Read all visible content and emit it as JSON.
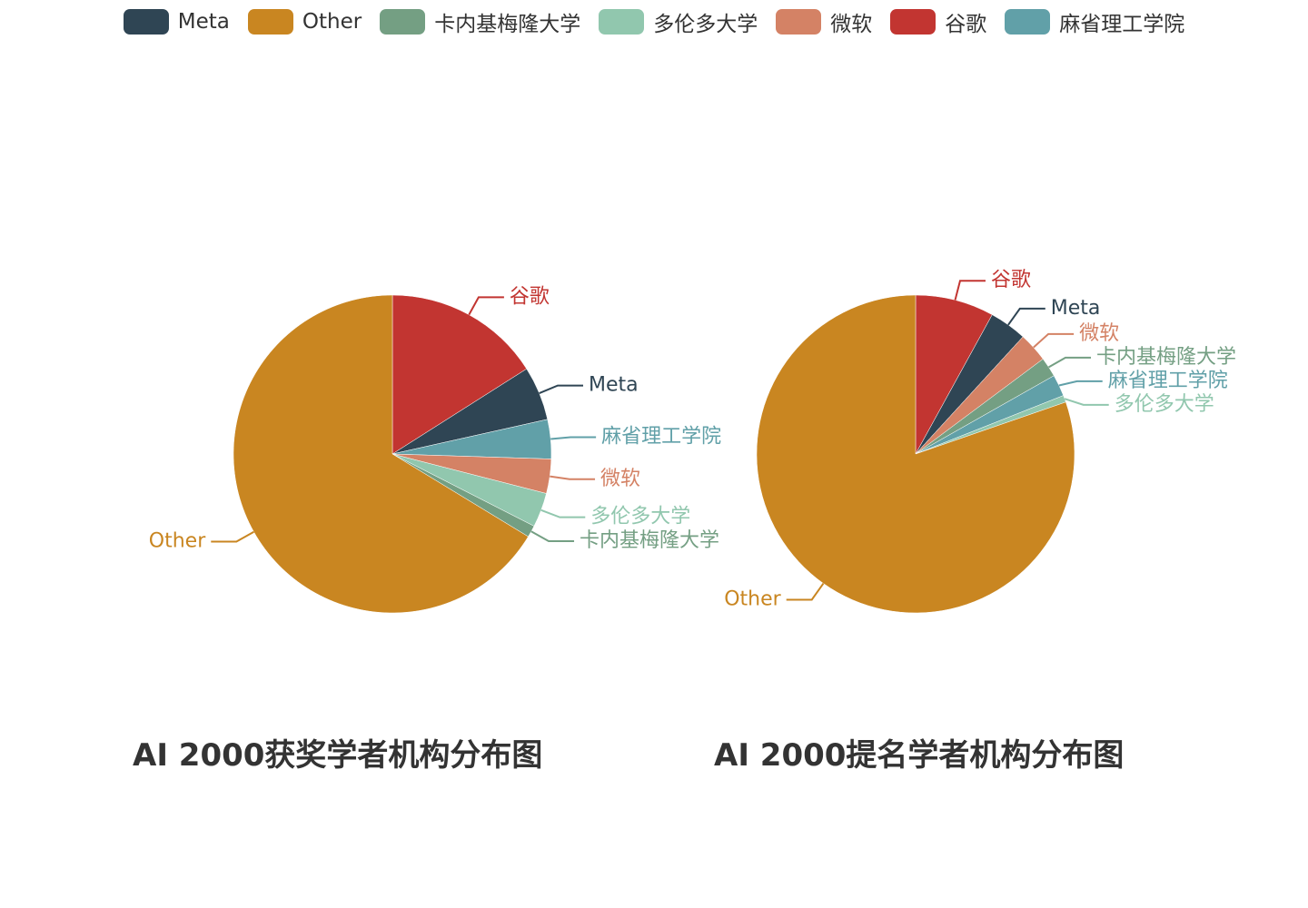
{
  "legend": {
    "items": [
      {
        "name": "Meta",
        "color": "#2f4554"
      },
      {
        "name": "Other",
        "color": "#c98621"
      },
      {
        "name": "卡内基梅隆大学",
        "color": "#749f83"
      },
      {
        "name": "多伦多大学",
        "color": "#91c7ae"
      },
      {
        "name": "微软",
        "color": "#d48265"
      },
      {
        "name": "谷歌",
        "color": "#c23531"
      },
      {
        "name": "麻省理工学院",
        "color": "#61a0a8"
      }
    ]
  },
  "chart_data": [
    {
      "type": "pie",
      "title": "AI 2000获奖学者机构分布图",
      "unit": "%",
      "slices": [
        {
          "name": "谷歌",
          "value": 16.0,
          "color": "#c23531"
        },
        {
          "name": "Meta",
          "value": 5.5,
          "color": "#2f4554"
        },
        {
          "name": "麻省理工学院",
          "value": 4.0,
          "color": "#61a0a8"
        },
        {
          "name": "微软",
          "value": 3.5,
          "color": "#d48265"
        },
        {
          "name": "多伦多大学",
          "value": 3.5,
          "color": "#91c7ae"
        },
        {
          "name": "卡内基梅隆大学",
          "value": 1.2,
          "color": "#749f83"
        },
        {
          "name": "Other",
          "value": 66.3,
          "color": "#c98621"
        }
      ]
    },
    {
      "type": "pie",
      "title": "AI 2000提名学者机构分布图",
      "unit": "%",
      "slices": [
        {
          "name": "谷歌",
          "value": 8.0,
          "color": "#c23531"
        },
        {
          "name": "Meta",
          "value": 3.8,
          "color": "#2f4554"
        },
        {
          "name": "微软",
          "value": 3.0,
          "color": "#d48265"
        },
        {
          "name": "卡内基梅隆大学",
          "value": 2.0,
          "color": "#749f83"
        },
        {
          "name": "麻省理工学院",
          "value": 2.2,
          "color": "#61a0a8"
        },
        {
          "name": "多伦多大学",
          "value": 0.7,
          "color": "#91c7ae"
        },
        {
          "name": "Other",
          "value": 80.3,
          "color": "#c98621"
        }
      ]
    }
  ]
}
